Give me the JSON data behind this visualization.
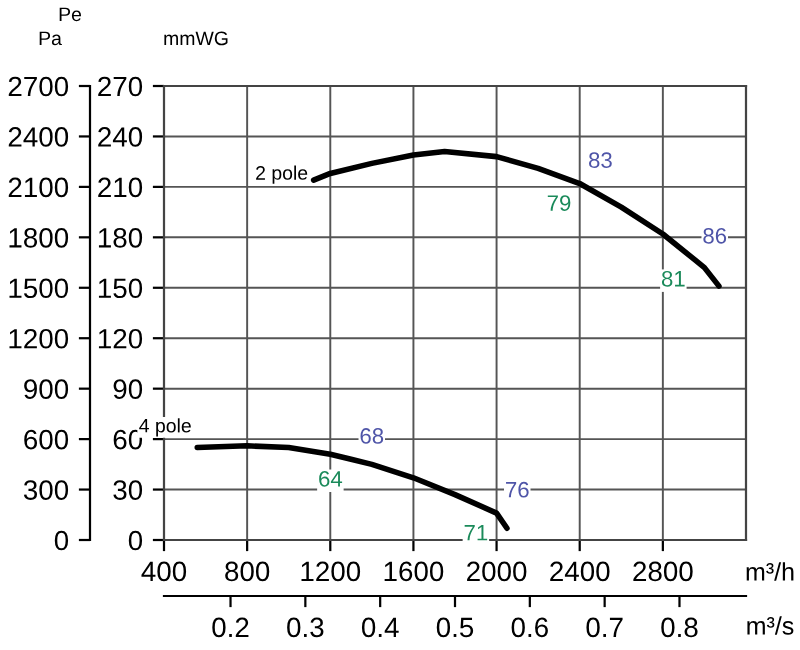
{
  "chart_data": {
    "type": "line",
    "series": [
      {
        "color": "#000000",
        "x": [
          1120,
          1200,
          1400,
          1600,
          1750,
          2000,
          2200,
          2400,
          2600,
          2800,
          2950,
          3000,
          3070
        ],
        "values": [
          214,
          218,
          224,
          229,
          231,
          228,
          221,
          212,
          198,
          182,
          167,
          162,
          151
        ]
      },
      {
        "color": "#000000",
        "x": [
          560,
          800,
          1000,
          1200,
          1300,
          1400,
          1600,
          1800,
          2000,
          2050
        ],
        "values": [
          55,
          56,
          55,
          51,
          48,
          45,
          37,
          27,
          16,
          7
        ]
      }
    ],
    "xlim": [
      400,
      3200
    ],
    "xticks": [
      400,
      800,
      1200,
      1600,
      2000,
      2400,
      2800
    ],
    "ylim": [
      0,
      270
    ],
    "yticks": [
      0,
      30,
      60,
      90,
      120,
      150,
      180,
      210,
      240,
      270
    ],
    "y2lim": [
      0,
      2700
    ],
    "y2ticks": [
      0,
      300,
      600,
      900,
      1200,
      1500,
      1800,
      2100,
      2400,
      2700
    ],
    "x2lim": [
      0.1111,
      0.8889
    ],
    "x2ticks": [
      0.2,
      0.3,
      0.4,
      0.5,
      0.6,
      0.7,
      0.8
    ],
    "xlabel": "m³/h",
    "x2label": "m³/s",
    "ylabel": "mmWG",
    "y2label": "Pa",
    "grid": true,
    "line_style": "solid",
    "marker": "none",
    "annotations": [
      "Pe",
      {
        "text": "2 pole",
        "x": 1120,
        "y": 214
      },
      {
        "text": "4 pole",
        "x": 560,
        "y": 55
      },
      {
        "text": "83",
        "x": 2400,
        "y": 212
      },
      {
        "text": "79",
        "x": 2400,
        "y": 212
      },
      {
        "text": "86",
        "x": 2950,
        "y": 167
      },
      {
        "text": "81",
        "x": 2950,
        "y": 167
      },
      {
        "text": "68",
        "x": 1300,
        "y": 48
      },
      {
        "text": "64",
        "x": 1300,
        "y": 48
      },
      {
        "text": "76",
        "x": 2000,
        "y": 16
      },
      {
        "text": "71",
        "x": 2000,
        "y": 16
      }
    ]
  }
}
